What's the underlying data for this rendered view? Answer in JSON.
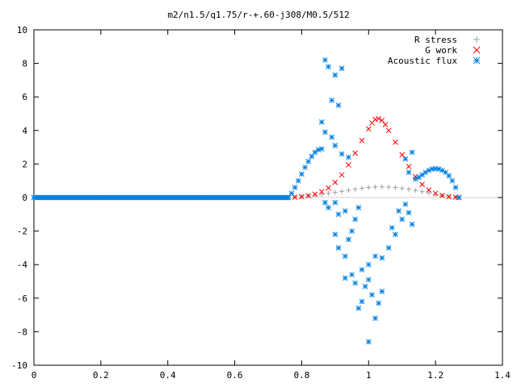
{
  "chart_data": {
    "type": "scatter",
    "title": "m2/n1.5/q1.75/r-+.60-j308/M0.5/512",
    "xlabel": "",
    "ylabel": "",
    "xlim": [
      0,
      1.4
    ],
    "ylim": [
      -10,
      10
    ],
    "xticks": [
      "0",
      "0.2",
      "0.4",
      "0.6",
      "0.8",
      "1",
      "1.2",
      "1.4"
    ],
    "yticks": [
      "-10",
      "-8",
      "-6",
      "-4",
      "-2",
      "0",
      "2",
      "4",
      "6",
      "8",
      "10"
    ],
    "legend_position": "top-right",
    "grid": false,
    "series": [
      {
        "name": "R stress",
        "marker": "+",
        "color": "#a0a0a0",
        "points": [
          [
            0.76,
            0.0
          ],
          [
            0.78,
            0.03
          ],
          [
            0.8,
            0.06
          ],
          [
            0.82,
            0.1
          ],
          [
            0.84,
            0.14
          ],
          [
            0.86,
            0.19
          ],
          [
            0.88,
            0.25
          ],
          [
            0.9,
            0.31
          ],
          [
            0.92,
            0.37
          ],
          [
            0.94,
            0.43
          ],
          [
            0.96,
            0.49
          ],
          [
            0.98,
            0.55
          ],
          [
            1.0,
            0.6
          ],
          [
            1.02,
            0.63
          ],
          [
            1.04,
            0.64
          ],
          [
            1.06,
            0.63
          ],
          [
            1.08,
            0.6
          ],
          [
            1.1,
            0.55
          ],
          [
            1.12,
            0.49
          ],
          [
            1.14,
            0.42
          ],
          [
            1.16,
            0.35
          ],
          [
            1.18,
            0.27
          ],
          [
            1.2,
            0.19
          ],
          [
            1.22,
            0.12
          ],
          [
            1.24,
            0.06
          ],
          [
            1.26,
            0.02
          ],
          [
            1.27,
            0.0
          ]
        ]
      },
      {
        "name": "G work",
        "marker": "x",
        "color": "#ff0000",
        "points": [
          [
            0.76,
            0.0
          ],
          [
            0.78,
            0.02
          ],
          [
            0.8,
            0.05
          ],
          [
            0.82,
            0.11
          ],
          [
            0.84,
            0.2
          ],
          [
            0.86,
            0.35
          ],
          [
            0.88,
            0.57
          ],
          [
            0.9,
            0.9
          ],
          [
            0.92,
            1.35
          ],
          [
            0.94,
            1.95
          ],
          [
            0.96,
            2.65
          ],
          [
            0.98,
            3.4
          ],
          [
            1.0,
            4.1
          ],
          [
            1.01,
            4.45
          ],
          [
            1.02,
            4.65
          ],
          [
            1.03,
            4.7
          ],
          [
            1.04,
            4.6
          ],
          [
            1.05,
            4.35
          ],
          [
            1.06,
            4.0
          ],
          [
            1.08,
            3.3
          ],
          [
            1.1,
            2.55
          ],
          [
            1.12,
            1.85
          ],
          [
            1.14,
            1.25
          ],
          [
            1.16,
            0.78
          ],
          [
            1.18,
            0.45
          ],
          [
            1.2,
            0.25
          ],
          [
            1.22,
            0.12
          ],
          [
            1.24,
            0.05
          ],
          [
            1.26,
            0.02
          ],
          [
            1.27,
            0.0
          ]
        ]
      },
      {
        "name": "Acoustic flux",
        "marker": "*",
        "color": "#0080e0",
        "points": [
          [
            0.0,
            0.0
          ],
          [
            0.76,
            0.0
          ],
          [
            0.77,
            0.25
          ],
          [
            0.78,
            0.6
          ],
          [
            0.79,
            1.0
          ],
          [
            0.8,
            1.4
          ],
          [
            0.81,
            1.8
          ],
          [
            0.82,
            2.15
          ],
          [
            0.83,
            2.45
          ],
          [
            0.84,
            2.7
          ],
          [
            0.85,
            2.85
          ],
          [
            0.86,
            2.9
          ],
          [
            0.86,
            4.5
          ],
          [
            0.87,
            8.2
          ],
          [
            0.88,
            7.8
          ],
          [
            0.9,
            7.3
          ],
          [
            0.92,
            7.7
          ],
          [
            0.89,
            5.8
          ],
          [
            0.91,
            5.5
          ],
          [
            0.87,
            3.9
          ],
          [
            0.89,
            3.6
          ],
          [
            0.9,
            3.1
          ],
          [
            0.92,
            2.6
          ],
          [
            0.94,
            2.4
          ],
          [
            0.87,
            -0.3
          ],
          [
            0.88,
            -0.6
          ],
          [
            0.9,
            -0.3
          ],
          [
            0.91,
            -1.0
          ],
          [
            0.93,
            -0.8
          ],
          [
            0.9,
            -2.2
          ],
          [
            0.91,
            -3.0
          ],
          [
            0.93,
            -3.5
          ],
          [
            0.94,
            -2.5
          ],
          [
            0.95,
            -2.0
          ],
          [
            0.96,
            -1.3
          ],
          [
            0.97,
            -0.6
          ],
          [
            0.93,
            -4.8
          ],
          [
            0.95,
            -4.6
          ],
          [
            0.96,
            -5.1
          ],
          [
            0.97,
            -6.6
          ],
          [
            0.98,
            -6.2
          ],
          [
            0.99,
            -5.3
          ],
          [
            1.0,
            -4.9
          ],
          [
            1.01,
            -5.8
          ],
          [
            1.02,
            -7.2
          ],
          [
            1.03,
            -6.3
          ],
          [
            1.04,
            -5.6
          ],
          [
            1.0,
            -8.6
          ],
          [
            0.98,
            -4.3
          ],
          [
            1.0,
            -4.0
          ],
          [
            1.02,
            -3.5
          ],
          [
            1.04,
            -3.6
          ],
          [
            1.06,
            -3.0
          ],
          [
            1.08,
            -2.2
          ],
          [
            1.1,
            -1.3
          ],
          [
            1.11,
            -0.4
          ],
          [
            1.12,
            -0.9
          ],
          [
            1.13,
            -1.6
          ],
          [
            1.07,
            -1.8
          ],
          [
            1.09,
            -0.8
          ],
          [
            1.11,
            2.3
          ],
          [
            1.12,
            1.5
          ],
          [
            1.13,
            2.7
          ],
          [
            1.14,
            1.1
          ],
          [
            1.15,
            1.2
          ],
          [
            1.16,
            1.35
          ],
          [
            1.17,
            1.5
          ],
          [
            1.18,
            1.62
          ],
          [
            1.19,
            1.7
          ],
          [
            1.2,
            1.72
          ],
          [
            1.21,
            1.7
          ],
          [
            1.22,
            1.62
          ],
          [
            1.23,
            1.5
          ],
          [
            1.24,
            1.3
          ],
          [
            1.25,
            1.0
          ],
          [
            1.26,
            0.6
          ],
          [
            1.27,
            0.0
          ]
        ]
      }
    ]
  }
}
